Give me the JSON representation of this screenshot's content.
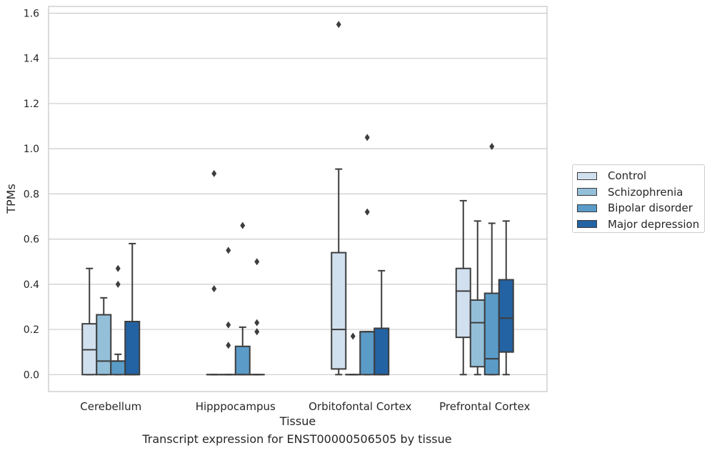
{
  "caption": "Transcript expression for ENST00000506505 by tissue",
  "chart_data": {
    "type": "box",
    "xlabel": "Tissue",
    "ylabel": "TPMs",
    "ylim": [
      -0.075,
      1.63
    ],
    "yticks": [
      0.0,
      0.2,
      0.4,
      0.6,
      0.8,
      1.0,
      1.2,
      1.4,
      1.6
    ],
    "ytick_labels": [
      "0.0",
      "0.2",
      "0.4",
      "0.6",
      "0.8",
      "1.0",
      "1.2",
      "1.4",
      "1.6"
    ],
    "grid": true,
    "legend_position": "right",
    "categories": [
      "Cerebellum",
      "Hipppocampus",
      "Orbitofontal Cortex",
      "Prefrontal Cortex"
    ],
    "series": [
      {
        "name": "Control",
        "color": "#d1e0ef",
        "boxes": [
          {
            "whislo": 0.0,
            "q1": 0.0,
            "med": 0.11,
            "q3": 0.225,
            "whishi": 0.47,
            "fliers": []
          },
          {
            "whislo": 0.0,
            "q1": 0.0,
            "med": 0.0,
            "q3": 0.0,
            "whishi": 0.0,
            "fliers": [
              0.38,
              0.89
            ]
          },
          {
            "whislo": 0.0,
            "q1": 0.025,
            "med": 0.2,
            "q3": 0.54,
            "whishi": 0.91,
            "fliers": [
              1.55
            ]
          },
          {
            "whislo": 0.0,
            "q1": 0.165,
            "med": 0.37,
            "q3": 0.47,
            "whishi": 0.77,
            "fliers": []
          }
        ]
      },
      {
        "name": "Schizophrenia",
        "color": "#93bfd9",
        "boxes": [
          {
            "whislo": 0.0,
            "q1": 0.0,
            "med": 0.06,
            "q3": 0.265,
            "whishi": 0.34,
            "fliers": []
          },
          {
            "whislo": 0.0,
            "q1": 0.0,
            "med": 0.0,
            "q3": 0.0,
            "whishi": 0.0,
            "fliers": [
              0.13,
              0.22,
              0.55
            ]
          },
          {
            "whislo": 0.0,
            "q1": 0.0,
            "med": 0.0,
            "q3": 0.0,
            "whishi": 0.0,
            "fliers": [
              0.17
            ]
          },
          {
            "whislo": 0.0,
            "q1": 0.035,
            "med": 0.23,
            "q3": 0.33,
            "whishi": 0.68,
            "fliers": []
          }
        ]
      },
      {
        "name": "Bipolar disorder",
        "color": "#5a9bc8",
        "boxes": [
          {
            "whislo": 0.0,
            "q1": 0.0,
            "med": 0.06,
            "q3": 0.06,
            "whishi": 0.09,
            "fliers": [
              0.4,
              0.47
            ]
          },
          {
            "whislo": 0.0,
            "q1": 0.0,
            "med": 0.0,
            "q3": 0.125,
            "whishi": 0.21,
            "fliers": [
              0.66
            ]
          },
          {
            "whislo": 0.0,
            "q1": 0.0,
            "med": 0.19,
            "q3": 0.19,
            "whishi": 0.19,
            "fliers": [
              0.72,
              1.05
            ]
          },
          {
            "whislo": 0.0,
            "q1": 0.0,
            "med": 0.07,
            "q3": 0.36,
            "whishi": 0.67,
            "fliers": [
              1.01
            ]
          }
        ]
      },
      {
        "name": "Major depression",
        "color": "#2363a3",
        "boxes": [
          {
            "whislo": 0.0,
            "q1": 0.0,
            "med": 0.0,
            "q3": 0.235,
            "whishi": 0.58,
            "fliers": []
          },
          {
            "whislo": 0.0,
            "q1": 0.0,
            "med": 0.0,
            "q3": 0.0,
            "whishi": 0.0,
            "fliers": [
              0.19,
              0.23,
              0.5
            ]
          },
          {
            "whislo": 0.0,
            "q1": 0.0,
            "med": 0.0,
            "q3": 0.205,
            "whishi": 0.46,
            "fliers": []
          },
          {
            "whislo": 0.0,
            "q1": 0.1,
            "med": 0.25,
            "q3": 0.42,
            "whishi": 0.68,
            "fliers": []
          }
        ]
      }
    ]
  }
}
